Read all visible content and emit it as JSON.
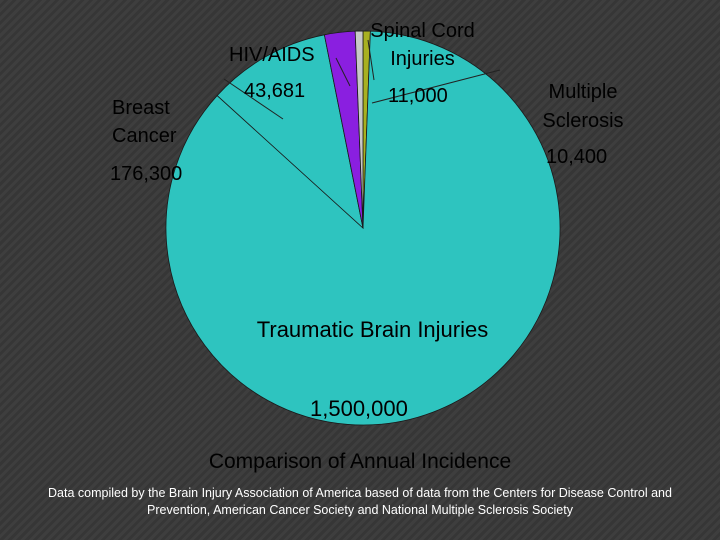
{
  "chart_data": {
    "type": "pie",
    "title": "Comparison of Annual Incidence",
    "source": "Data compiled by the Brain Injury Association of America based of data from the Centers for Disease Control and Prevention, American Cancer Society and National Multiple Sclerosis Society",
    "slices": [
      {
        "label": "Traumatic Brain Injuries",
        "value": 1500000,
        "value_label": "1,500,000",
        "color": "#2ec4bf"
      },
      {
        "label": "Breast Cancer",
        "value": 176300,
        "value_label": "176,300",
        "color": "#2ec4bf"
      },
      {
        "label": "HIV/AIDS",
        "value": 43681,
        "value_label": "43,681",
        "color": "#8a1fe0"
      },
      {
        "label": "Spinal Cord Injuries",
        "value": 11000,
        "value_label": "11,000",
        "color": "#c8c8c8"
      },
      {
        "label": "Multiple Sclerosis",
        "value": 10400,
        "value_label": "10,400",
        "color": "#a8b020"
      }
    ]
  }
}
